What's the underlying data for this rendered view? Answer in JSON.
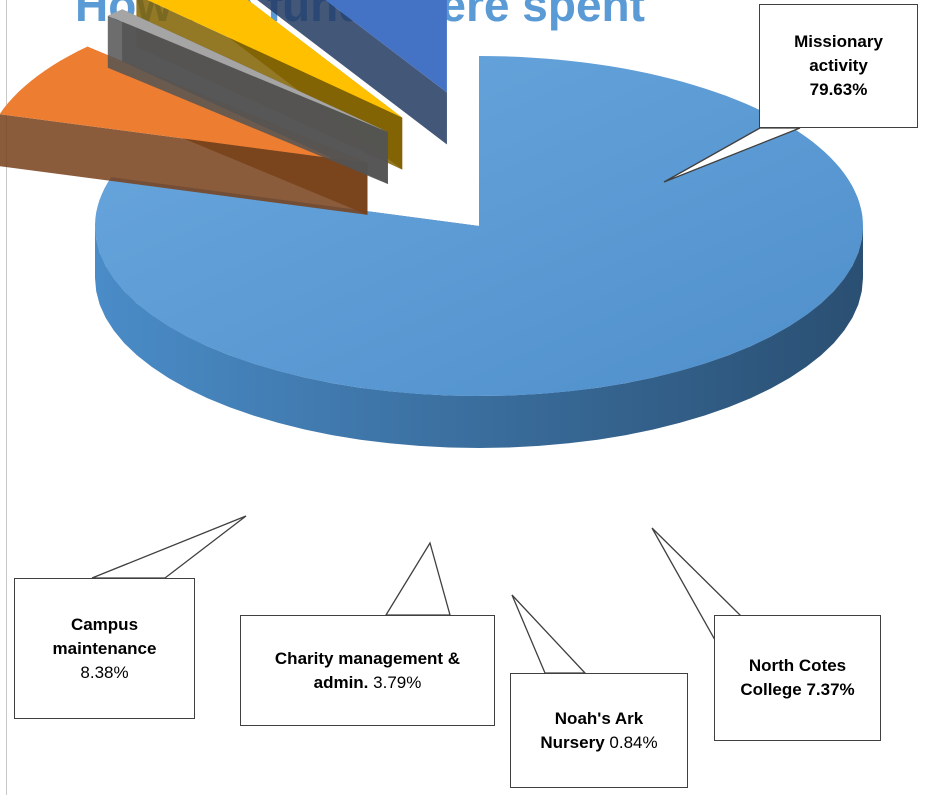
{
  "chart_data": {
    "type": "pie",
    "style": "3d-exploded",
    "title": "How the funds were spent",
    "slices": [
      {
        "label": "Missionary activity",
        "value": 79.63,
        "value_text": "79.63%",
        "color": "#5b9bd5"
      },
      {
        "label": "North Cotes College",
        "value": 7.37,
        "value_text": "7.37%",
        "color": "#ed7d31"
      },
      {
        "label": "Noah's Ark Nursery",
        "value": 0.84,
        "value_text": "0.84%",
        "color": "#a5a5a5"
      },
      {
        "label": "Charity management & admin.",
        "value": 3.79,
        "value_text": "3.79%",
        "color": "#ffc000"
      },
      {
        "label": "Campus maintenance",
        "value": 8.38,
        "value_text": "8.38%",
        "color": "#4472c4"
      }
    ],
    "legend": "none",
    "grid": false
  }
}
